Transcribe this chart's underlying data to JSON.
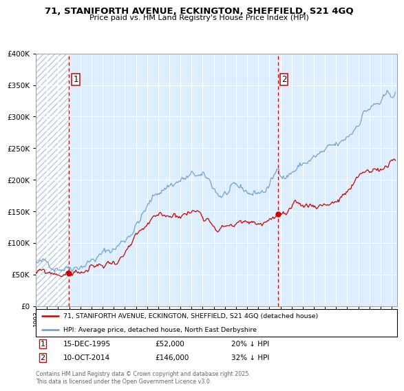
{
  "title_line1": "71, STANIFORTH AVENUE, ECKINGTON, SHEFFIELD, S21 4GQ",
  "title_line2": "Price paid vs. HM Land Registry's House Price Index (HPI)",
  "sale1_date": "15-DEC-1995",
  "sale1_price": 52000,
  "sale1_label": "20% ↓ HPI",
  "sale1_x": 1995.96,
  "sale2_date": "10-OCT-2014",
  "sale2_price": 146000,
  "sale2_label": "32% ↓ HPI",
  "sale2_x": 2014.78,
  "legend_line1": "71, STANIFORTH AVENUE, ECKINGTON, SHEFFIELD, S21 4GQ (detached house)",
  "legend_line2": "HPI: Average price, detached house, North East Derbyshire",
  "footer": "Contains HM Land Registry data © Crown copyright and database right 2025.\nThis data is licensed under the Open Government Licence v3.0.",
  "hpi_color": "#6699cc",
  "price_color": "#cc0000",
  "vline_color": "#cc0000",
  "bg_color": "#ddeeff",
  "hatch_color": "#b0c4d8",
  "ylim": [
    0,
    400000
  ],
  "xlim_start": 1993.0,
  "xlim_end": 2025.5
}
